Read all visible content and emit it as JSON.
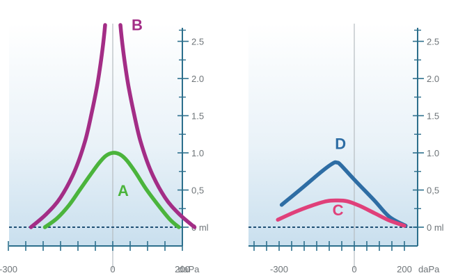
{
  "chart_data": [
    {
      "type": "line",
      "title": "",
      "xlabel": "",
      "ylabel": "",
      "x_unit": "daPa",
      "y_unit": "ml",
      "xlim": [
        -400,
        250
      ],
      "ylim": [
        -0.25,
        2.75
      ],
      "x_ticks": [
        -300,
        0,
        200
      ],
      "x_tick_labels": [
        "-300",
        "0",
        "200"
      ],
      "x_minor_ticks": [
        -400,
        -350,
        -300,
        -250,
        -200,
        -150,
        -100,
        -50,
        0,
        50,
        100,
        150,
        200
      ],
      "y_ticks": [
        0,
        0.5,
        1.0,
        1.5,
        2.0,
        2.5
      ],
      "y_tick_labels": [
        "0 ml",
        "0,5",
        "1.0",
        "1.5",
        "2.0",
        "2.5"
      ],
      "y_minor_ticks": [
        0.25,
        0.75,
        1.25,
        1.75,
        2.25,
        2.65
      ],
      "grid": false,
      "legend": "none",
      "series": [
        {
          "name": "A",
          "color": "#4bb43c",
          "x": [
            -195,
            -160,
            -125,
            -95,
            -65,
            -40,
            -20,
            0,
            20,
            40,
            65,
            95,
            130,
            165,
            190
          ],
          "y": [
            0.0,
            0.12,
            0.3,
            0.5,
            0.7,
            0.86,
            0.96,
            1.0,
            0.98,
            0.9,
            0.74,
            0.52,
            0.3,
            0.1,
            0.0
          ]
        },
        {
          "name": "B",
          "color": "#a32d86",
          "x": [
            -235,
            -190,
            -150,
            -110,
            -80,
            -60,
            -45,
            -35,
            -28,
            -24,
            -22
          ],
          "y": [
            0.0,
            0.18,
            0.4,
            0.75,
            1.15,
            1.55,
            1.9,
            2.2,
            2.45,
            2.62,
            2.72
          ]
        },
        {
          "name": "B",
          "color": "#a32d86",
          "x": [
            235,
            190,
            150,
            110,
            80,
            60,
            45,
            35,
            28,
            24,
            22
          ],
          "y": [
            0.0,
            0.18,
            0.4,
            0.75,
            1.15,
            1.55,
            1.9,
            2.2,
            2.45,
            2.62,
            2.72
          ]
        }
      ]
    },
    {
      "type": "line",
      "title": "",
      "xlabel": "",
      "ylabel": "",
      "x_unit": "daPa",
      "y_unit": "ml",
      "xlim": [
        -400,
        250
      ],
      "ylim": [
        -0.25,
        2.75
      ],
      "x_ticks": [
        -300,
        0,
        200
      ],
      "x_tick_labels": [
        "-300",
        "0",
        "200"
      ],
      "x_minor_ticks": [
        -400,
        -350,
        -300,
        -250,
        -200,
        -150,
        -100,
        -50,
        0,
        50,
        100,
        150,
        200
      ],
      "y_ticks": [
        0,
        0.5,
        1.0,
        1.5,
        2.0,
        2.5
      ],
      "y_tick_labels": [
        "0 ml",
        "0,5",
        "1.0",
        "1.5",
        "2.0",
        "2.5"
      ],
      "y_minor_ticks": [
        0.25,
        0.75,
        1.25,
        1.75,
        2.25,
        2.65
      ],
      "grid": false,
      "legend": "none",
      "series": [
        {
          "name": "D",
          "color": "#2e6da4",
          "x": [
            -290,
            -200,
            -130,
            -85,
            -70,
            -55,
            0,
            80,
            140,
            205
          ],
          "y": [
            0.3,
            0.55,
            0.75,
            0.86,
            0.87,
            0.84,
            0.64,
            0.36,
            0.14,
            0.02
          ]
        },
        {
          "name": "C",
          "color": "#e0407a",
          "x": [
            -305,
            -240,
            -170,
            -110,
            -70,
            -30,
            20,
            80,
            140,
            200
          ],
          "y": [
            0.1,
            0.2,
            0.29,
            0.35,
            0.36,
            0.35,
            0.29,
            0.19,
            0.09,
            0.02
          ]
        }
      ]
    }
  ],
  "annotations": {
    "left": [
      {
        "text": "B",
        "color": "#a32d86",
        "x": 70,
        "y": 2.65
      },
      {
        "text": "A",
        "color": "#4bb43c",
        "x": 30,
        "y": 0.42
      }
    ],
    "right": [
      {
        "text": "D",
        "color": "#2e6da4",
        "x": -55,
        "y": 1.05
      },
      {
        "text": "C",
        "color": "#e0407a",
        "x": -65,
        "y": 0.16
      }
    ]
  },
  "colors": {
    "axis": "#2c6f8c",
    "zero_line": "#1f4f74",
    "center_line": "#b6bcc0",
    "band_top": "#ffffff",
    "band_bottom": "#c9dfee"
  }
}
